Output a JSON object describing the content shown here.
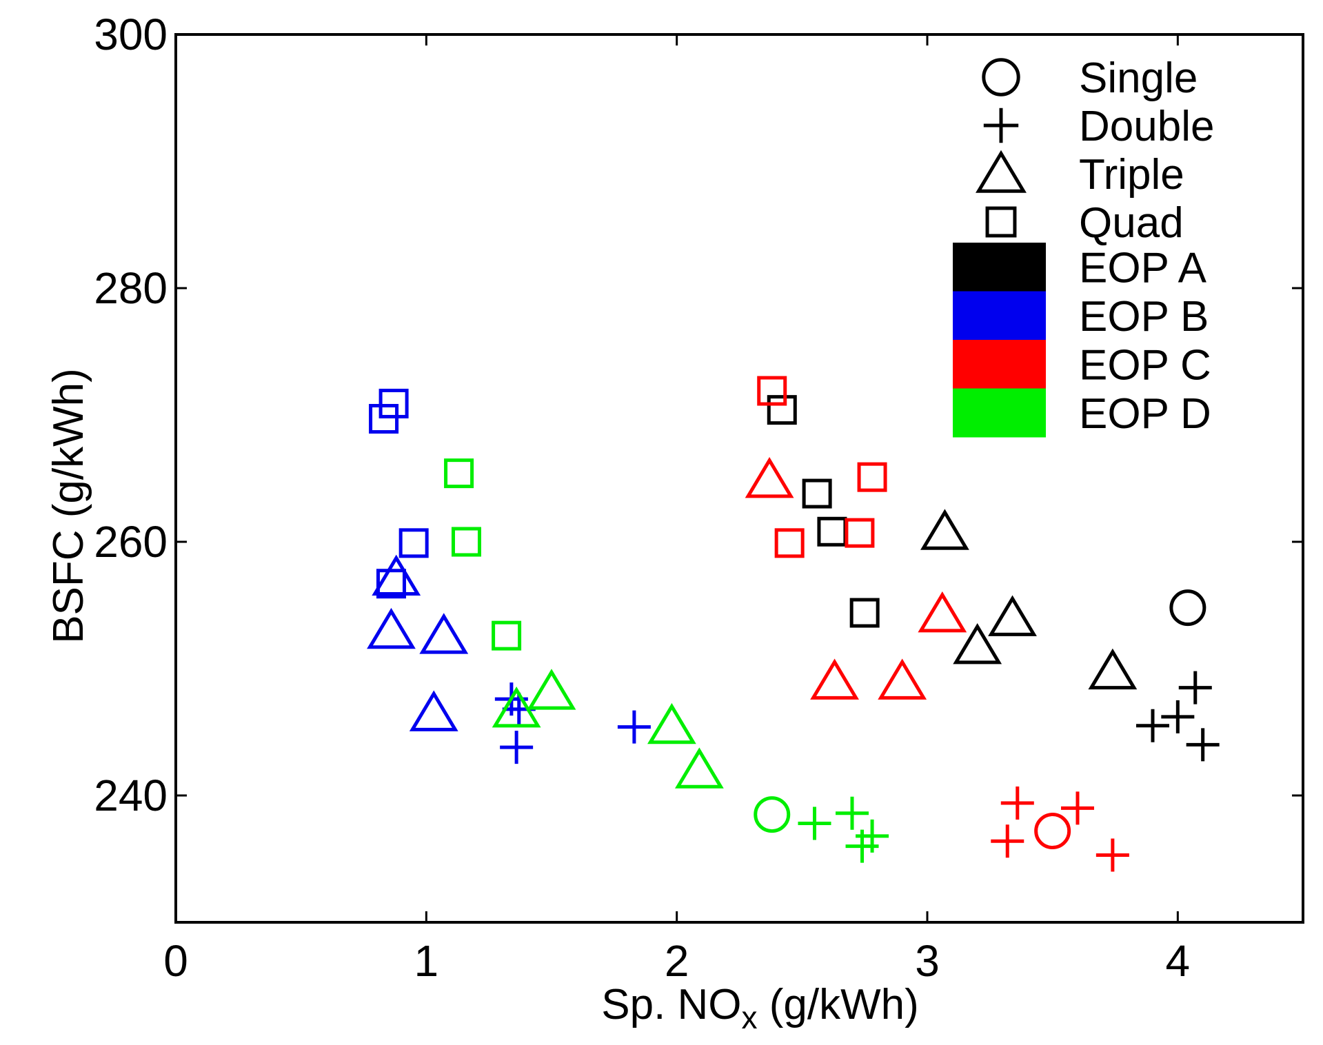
{
  "chart_data": {
    "type": "scatter",
    "title": "",
    "xlabel": {
      "main": "Sp. NO",
      "sub": "x",
      "unit": " (g/kWh)"
    },
    "ylabel": "BSFC (g/kWh)",
    "xlim": [
      0,
      4.5
    ],
    "ylim": [
      230,
      300
    ],
    "xticks": [
      0,
      1,
      2,
      3,
      4
    ],
    "xtick_labels": [
      "0",
      "1",
      "2",
      "3",
      "4"
    ],
    "yticks": [
      240,
      260,
      280,
      300
    ],
    "ytick_labels": [
      "240",
      "260",
      "280",
      "300"
    ],
    "grid": false,
    "legend_position": "top-right",
    "colors": {
      "EOP A": "#000000",
      "EOP B": "#0000ee",
      "EOP C": "#ff0000",
      "EOP D": "#00ee00"
    },
    "legend": {
      "markers": [
        {
          "marker": "circle",
          "label": "Single"
        },
        {
          "marker": "plus",
          "label": "Double"
        },
        {
          "marker": "triangle",
          "label": "Triple"
        },
        {
          "marker": "square",
          "label": "Quad"
        }
      ],
      "colors": [
        {
          "color": "#000000",
          "label": "EOP A"
        },
        {
          "color": "#0000ee",
          "label": "EOP B"
        },
        {
          "color": "#ff0000",
          "label": "EOP C"
        },
        {
          "color": "#00ee00",
          "label": "EOP D"
        }
      ]
    },
    "series": [
      {
        "name": "EOP A",
        "injection": "Single",
        "marker": "circle",
        "color": "#000000",
        "points": [
          [
            4.04,
            254.8
          ]
        ]
      },
      {
        "name": "EOP A",
        "injection": "Double",
        "marker": "plus",
        "color": "#000000",
        "points": [
          [
            4.07,
            248.5
          ],
          [
            4.0,
            246.2
          ],
          [
            3.9,
            245.5
          ],
          [
            4.1,
            244.0
          ]
        ]
      },
      {
        "name": "EOP A",
        "injection": "Triple",
        "marker": "triangle",
        "color": "#000000",
        "points": [
          [
            3.07,
            260.8
          ],
          [
            3.34,
            254.0
          ],
          [
            3.2,
            251.8
          ],
          [
            3.74,
            249.8
          ]
        ]
      },
      {
        "name": "EOP A",
        "injection": "Quad",
        "marker": "square",
        "color": "#000000",
        "points": [
          [
            2.42,
            270.4
          ],
          [
            2.56,
            263.8
          ],
          [
            2.62,
            260.8
          ],
          [
            2.75,
            254.4
          ]
        ]
      },
      {
        "name": "EOP B",
        "injection": "Double",
        "marker": "plus",
        "color": "#0000ee",
        "points": [
          [
            1.34,
            247.6
          ],
          [
            1.37,
            246.8
          ],
          [
            1.36,
            243.8
          ],
          [
            1.83,
            245.4
          ]
        ]
      },
      {
        "name": "EOP B",
        "injection": "Triple",
        "marker": "triangle",
        "color": "#0000ee",
        "points": [
          [
            0.88,
            257.2
          ],
          [
            0.86,
            253.0
          ],
          [
            1.07,
            252.6
          ],
          [
            1.03,
            246.5
          ]
        ]
      },
      {
        "name": "EOP B",
        "injection": "Quad",
        "marker": "square",
        "color": "#0000ee",
        "points": [
          [
            0.87,
            270.9
          ],
          [
            0.83,
            269.7
          ],
          [
            0.95,
            259.9
          ],
          [
            0.86,
            256.7
          ]
        ]
      },
      {
        "name": "EOP C",
        "injection": "Single",
        "marker": "circle",
        "color": "#ff0000",
        "points": [
          [
            3.5,
            237.2
          ]
        ]
      },
      {
        "name": "EOP C",
        "injection": "Double",
        "marker": "plus",
        "color": "#ff0000",
        "points": [
          [
            3.36,
            239.4
          ],
          [
            3.6,
            239.0
          ],
          [
            3.32,
            236.4
          ],
          [
            3.74,
            235.3
          ]
        ]
      },
      {
        "name": "EOP C",
        "injection": "Triple",
        "marker": "triangle",
        "color": "#ff0000",
        "points": [
          [
            2.37,
            264.9
          ],
          [
            3.06,
            254.3
          ],
          [
            2.63,
            249.0
          ],
          [
            2.9,
            249.0
          ]
        ]
      },
      {
        "name": "EOP C",
        "injection": "Quad",
        "marker": "square",
        "color": "#ff0000",
        "points": [
          [
            2.38,
            271.9
          ],
          [
            2.78,
            265.1
          ],
          [
            2.45,
            259.9
          ],
          [
            2.73,
            260.7
          ]
        ]
      },
      {
        "name": "EOP D",
        "injection": "Single",
        "marker": "circle",
        "color": "#00ee00",
        "points": [
          [
            2.38,
            238.5
          ]
        ]
      },
      {
        "name": "EOP D",
        "injection": "Double",
        "marker": "plus",
        "color": "#00ee00",
        "points": [
          [
            2.55,
            237.8
          ],
          [
            2.7,
            238.6
          ],
          [
            2.78,
            236.8
          ],
          [
            2.74,
            236.0
          ]
        ]
      },
      {
        "name": "EOP D",
        "injection": "Triple",
        "marker": "triangle",
        "color": "#00ee00",
        "points": [
          [
            1.5,
            248.2
          ],
          [
            1.36,
            246.8
          ],
          [
            1.98,
            245.5
          ],
          [
            2.09,
            242.0
          ]
        ]
      },
      {
        "name": "EOP D",
        "injection": "Quad",
        "marker": "square",
        "color": "#00ee00",
        "points": [
          [
            1.13,
            265.4
          ],
          [
            1.16,
            260.0
          ],
          [
            1.32,
            252.6
          ]
        ]
      }
    ]
  }
}
